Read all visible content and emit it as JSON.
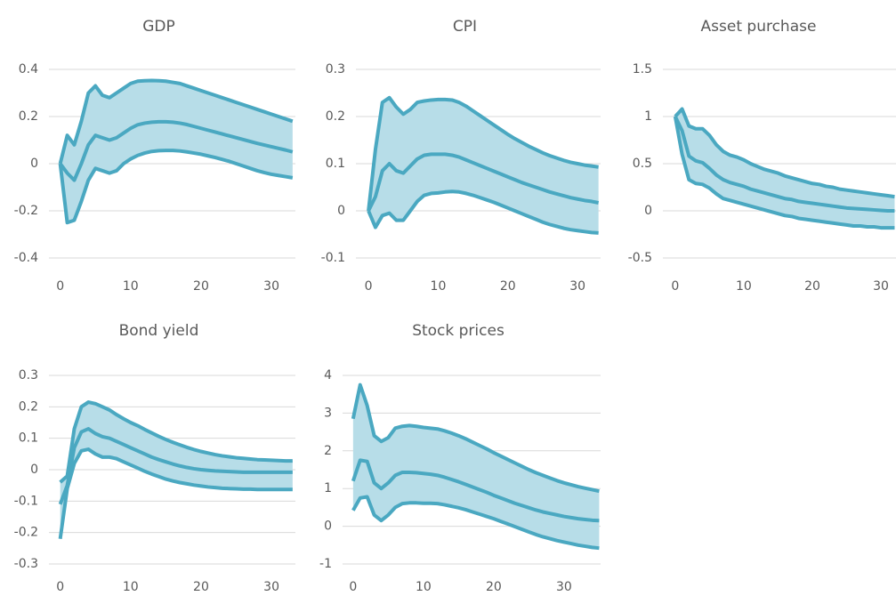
{
  "chart_data": [
    {
      "type": "band-line",
      "title": "GDP",
      "band_color": "#b7dde8",
      "x": [
        0,
        1,
        2,
        3,
        4,
        5,
        6,
        7,
        8,
        9,
        10,
        11,
        12,
        13,
        14,
        15,
        16,
        17,
        18,
        19,
        20,
        21,
        22,
        23,
        24,
        25,
        26,
        27,
        28,
        29,
        30,
        31,
        32,
        33
      ],
      "series": [
        {
          "color": "#4aa8c1",
          "values": [
            0,
            0.12,
            0.08,
            0.18,
            0.3,
            0.33,
            0.29,
            0.28,
            0.3,
            0.32,
            0.34,
            0.35,
            0.352,
            0.353,
            0.352,
            0.35,
            0.345,
            0.34,
            0.33,
            0.32,
            0.31,
            0.3,
            0.29,
            0.28,
            0.27,
            0.26,
            0.25,
            0.24,
            0.23,
            0.22,
            0.21,
            0.2,
            0.19,
            0.18
          ]
        },
        {
          "color": "#4aa8c1",
          "values": [
            0,
            -0.04,
            -0.07,
            0.0,
            0.08,
            0.12,
            0.11,
            0.1,
            0.11,
            0.13,
            0.15,
            0.165,
            0.172,
            0.176,
            0.178,
            0.178,
            0.176,
            0.172,
            0.166,
            0.158,
            0.15,
            0.142,
            0.134,
            0.126,
            0.118,
            0.11,
            0.102,
            0.094,
            0.086,
            0.079,
            0.072,
            0.065,
            0.058,
            0.05
          ]
        },
        {
          "color": "#4aa8c1",
          "values": [
            0,
            -0.25,
            -0.24,
            -0.16,
            -0.07,
            -0.02,
            -0.03,
            -0.04,
            -0.03,
            0.0,
            0.02,
            0.035,
            0.045,
            0.052,
            0.055,
            0.056,
            0.056,
            0.054,
            0.05,
            0.045,
            0.04,
            0.033,
            0.026,
            0.018,
            0.01,
            0.0,
            -0.01,
            -0.02,
            -0.03,
            -0.038,
            -0.045,
            -0.05,
            -0.055,
            -0.06
          ]
        }
      ],
      "xlim": [
        -1.6,
        33.4
      ],
      "xticks": [
        0,
        10,
        20,
        30
      ],
      "ylim": [
        -0.4,
        0.4
      ],
      "yticks": [
        -0.4,
        -0.2,
        0,
        0.2,
        0.4
      ],
      "grid": true
    },
    {
      "type": "band-line",
      "title": "CPI",
      "band_color": "#b7dde8",
      "x": [
        0,
        1,
        2,
        3,
        4,
        5,
        6,
        7,
        8,
        9,
        10,
        11,
        12,
        13,
        14,
        15,
        16,
        17,
        18,
        19,
        20,
        21,
        22,
        23,
        24,
        25,
        26,
        27,
        28,
        29,
        30,
        31,
        32,
        33
      ],
      "series": [
        {
          "color": "#4aa8c1",
          "values": [
            0,
            0.13,
            0.23,
            0.24,
            0.22,
            0.205,
            0.215,
            0.23,
            0.233,
            0.235,
            0.236,
            0.236,
            0.235,
            0.23,
            0.222,
            0.212,
            0.202,
            0.192,
            0.182,
            0.172,
            0.162,
            0.153,
            0.145,
            0.137,
            0.13,
            0.123,
            0.117,
            0.112,
            0.107,
            0.103,
            0.1,
            0.097,
            0.095,
            0.093
          ]
        },
        {
          "color": "#4aa8c1",
          "values": [
            0,
            0.03,
            0.085,
            0.1,
            0.085,
            0.08,
            0.095,
            0.11,
            0.118,
            0.12,
            0.12,
            0.12,
            0.118,
            0.114,
            0.108,
            0.102,
            0.096,
            0.09,
            0.084,
            0.078,
            0.072,
            0.066,
            0.06,
            0.055,
            0.05,
            0.045,
            0.04,
            0.036,
            0.032,
            0.028,
            0.025,
            0.022,
            0.02,
            0.017
          ]
        },
        {
          "color": "#4aa8c1",
          "values": [
            0,
            -0.035,
            -0.01,
            -0.005,
            -0.02,
            -0.02,
            0.0,
            0.02,
            0.033,
            0.037,
            0.038,
            0.04,
            0.041,
            0.04,
            0.037,
            0.033,
            0.028,
            0.023,
            0.018,
            0.012,
            0.006,
            0.0,
            -0.006,
            -0.012,
            -0.018,
            -0.024,
            -0.029,
            -0.033,
            -0.037,
            -0.04,
            -0.042,
            -0.044,
            -0.046,
            -0.047
          ]
        }
      ],
      "xlim": [
        -1.8,
        33.3
      ],
      "xticks": [
        0,
        10,
        20,
        30
      ],
      "ylim": [
        -0.1,
        0.3
      ],
      "yticks": [
        -0.1,
        0,
        0.1,
        0.2,
        0.3
      ],
      "grid": true
    },
    {
      "type": "band-line",
      "title": "Asset purchase",
      "band_color": "#b7dde8",
      "x": [
        0,
        1,
        2,
        3,
        4,
        5,
        6,
        7,
        8,
        9,
        10,
        11,
        12,
        13,
        14,
        15,
        16,
        17,
        18,
        19,
        20,
        21,
        22,
        23,
        24,
        25,
        26,
        27,
        28,
        29,
        30,
        31,
        32
      ],
      "series": [
        {
          "color": "#4aa8c1",
          "values": [
            1.0,
            1.08,
            0.9,
            0.87,
            0.87,
            0.8,
            0.7,
            0.63,
            0.59,
            0.57,
            0.54,
            0.5,
            0.47,
            0.44,
            0.42,
            0.4,
            0.37,
            0.35,
            0.33,
            0.31,
            0.29,
            0.28,
            0.26,
            0.25,
            0.23,
            0.22,
            0.21,
            0.2,
            0.19,
            0.18,
            0.17,
            0.16,
            0.15
          ]
        },
        {
          "color": "#4aa8c1",
          "values": [
            1.0,
            0.85,
            0.58,
            0.53,
            0.51,
            0.45,
            0.38,
            0.33,
            0.3,
            0.28,
            0.26,
            0.23,
            0.21,
            0.19,
            0.17,
            0.15,
            0.13,
            0.12,
            0.1,
            0.09,
            0.08,
            0.07,
            0.06,
            0.05,
            0.04,
            0.03,
            0.025,
            0.02,
            0.015,
            0.01,
            0.005,
            0.0,
            0.0
          ]
        },
        {
          "color": "#4aa8c1",
          "values": [
            1.0,
            0.6,
            0.33,
            0.29,
            0.28,
            0.24,
            0.18,
            0.13,
            0.11,
            0.09,
            0.07,
            0.05,
            0.03,
            0.01,
            -0.01,
            -0.03,
            -0.05,
            -0.06,
            -0.08,
            -0.09,
            -0.1,
            -0.11,
            -0.12,
            -0.13,
            -0.14,
            -0.15,
            -0.16,
            -0.16,
            -0.17,
            -0.17,
            -0.18,
            -0.18,
            -0.18
          ]
        }
      ],
      "xlim": [
        -1.8,
        32.2
      ],
      "xticks": [
        0,
        10,
        20,
        30
      ],
      "ylim": [
        -0.5,
        1.5
      ],
      "yticks": [
        -0.5,
        0,
        0.5,
        1,
        1.5
      ],
      "grid": true
    },
    {
      "type": "band-line",
      "title": "Bond yield",
      "band_color": "#b7dde8",
      "x": [
        0,
        1,
        2,
        3,
        4,
        5,
        6,
        7,
        8,
        9,
        10,
        11,
        12,
        13,
        14,
        15,
        16,
        17,
        18,
        19,
        20,
        21,
        22,
        23,
        24,
        25,
        26,
        27,
        28,
        29,
        30,
        31,
        32,
        33
      ],
      "series": [
        {
          "color": "#4aa8c1",
          "values": [
            -0.04,
            -0.02,
            0.13,
            0.2,
            0.215,
            0.21,
            0.2,
            0.19,
            0.175,
            0.162,
            0.15,
            0.14,
            0.128,
            0.117,
            0.106,
            0.096,
            0.087,
            0.079,
            0.071,
            0.064,
            0.058,
            0.053,
            0.048,
            0.044,
            0.041,
            0.038,
            0.036,
            0.034,
            0.032,
            0.031,
            0.03,
            0.029,
            0.028,
            0.028
          ]
        },
        {
          "color": "#4aa8c1",
          "values": [
            -0.11,
            -0.05,
            0.07,
            0.12,
            0.13,
            0.115,
            0.105,
            0.1,
            0.09,
            0.08,
            0.07,
            0.06,
            0.05,
            0.04,
            0.032,
            0.025,
            0.018,
            0.012,
            0.007,
            0.003,
            0.0,
            -0.002,
            -0.004,
            -0.005,
            -0.006,
            -0.007,
            -0.008,
            -0.008,
            -0.008,
            -0.008,
            -0.008,
            -0.008,
            -0.008,
            -0.008
          ]
        },
        {
          "color": "#4aa8c1",
          "values": [
            -0.22,
            -0.06,
            0.02,
            0.06,
            0.065,
            0.05,
            0.04,
            0.04,
            0.035,
            0.025,
            0.015,
            0.005,
            -0.005,
            -0.014,
            -0.022,
            -0.03,
            -0.036,
            -0.041,
            -0.045,
            -0.049,
            -0.052,
            -0.055,
            -0.057,
            -0.059,
            -0.06,
            -0.061,
            -0.062,
            -0.062,
            -0.063,
            -0.063,
            -0.063,
            -0.063,
            -0.063,
            -0.063
          ]
        }
      ],
      "xlim": [
        -1.6,
        33.4
      ],
      "xticks": [
        0,
        10,
        20,
        30
      ],
      "ylim": [
        -0.3,
        0.3
      ],
      "yticks": [
        -0.3,
        -0.2,
        -0.1,
        0,
        0.1,
        0.2,
        0.3
      ],
      "grid": true
    },
    {
      "type": "band-line",
      "title": "Stock prices",
      "band_color": "#b7dde8",
      "x": [
        0,
        1,
        2,
        3,
        4,
        5,
        6,
        7,
        8,
        9,
        10,
        11,
        12,
        13,
        14,
        15,
        16,
        17,
        18,
        19,
        20,
        21,
        22,
        23,
        24,
        25,
        26,
        27,
        28,
        29,
        30,
        31,
        32,
        33,
        34,
        35
      ],
      "series": [
        {
          "color": "#4aa8c1",
          "values": [
            2.85,
            3.75,
            3.2,
            2.4,
            2.25,
            2.35,
            2.6,
            2.65,
            2.67,
            2.65,
            2.62,
            2.6,
            2.58,
            2.53,
            2.47,
            2.4,
            2.32,
            2.23,
            2.14,
            2.05,
            1.95,
            1.86,
            1.77,
            1.68,
            1.59,
            1.5,
            1.42,
            1.35,
            1.28,
            1.21,
            1.15,
            1.1,
            1.05,
            1.01,
            0.97,
            0.93
          ]
        },
        {
          "color": "#4aa8c1",
          "values": [
            1.2,
            1.75,
            1.72,
            1.15,
            1.0,
            1.15,
            1.35,
            1.43,
            1.43,
            1.42,
            1.4,
            1.38,
            1.35,
            1.3,
            1.24,
            1.18,
            1.11,
            1.04,
            0.97,
            0.9,
            0.82,
            0.75,
            0.68,
            0.61,
            0.55,
            0.49,
            0.43,
            0.38,
            0.34,
            0.3,
            0.26,
            0.23,
            0.2,
            0.18,
            0.16,
            0.15
          ]
        },
        {
          "color": "#4aa8c1",
          "values": [
            0.42,
            0.75,
            0.78,
            0.3,
            0.15,
            0.3,
            0.5,
            0.6,
            0.62,
            0.62,
            0.61,
            0.61,
            0.6,
            0.57,
            0.53,
            0.49,
            0.44,
            0.38,
            0.32,
            0.26,
            0.2,
            0.13,
            0.06,
            -0.01,
            -0.08,
            -0.15,
            -0.22,
            -0.28,
            -0.33,
            -0.38,
            -0.42,
            -0.46,
            -0.5,
            -0.53,
            -0.56,
            -0.58
          ]
        }
      ],
      "xlim": [
        -1.5,
        35.2
      ],
      "xticks": [
        0,
        10,
        20,
        30
      ],
      "ylim": [
        -1,
        4
      ],
      "yticks": [
        -1,
        0,
        1,
        2,
        3,
        4
      ],
      "grid": true
    }
  ]
}
